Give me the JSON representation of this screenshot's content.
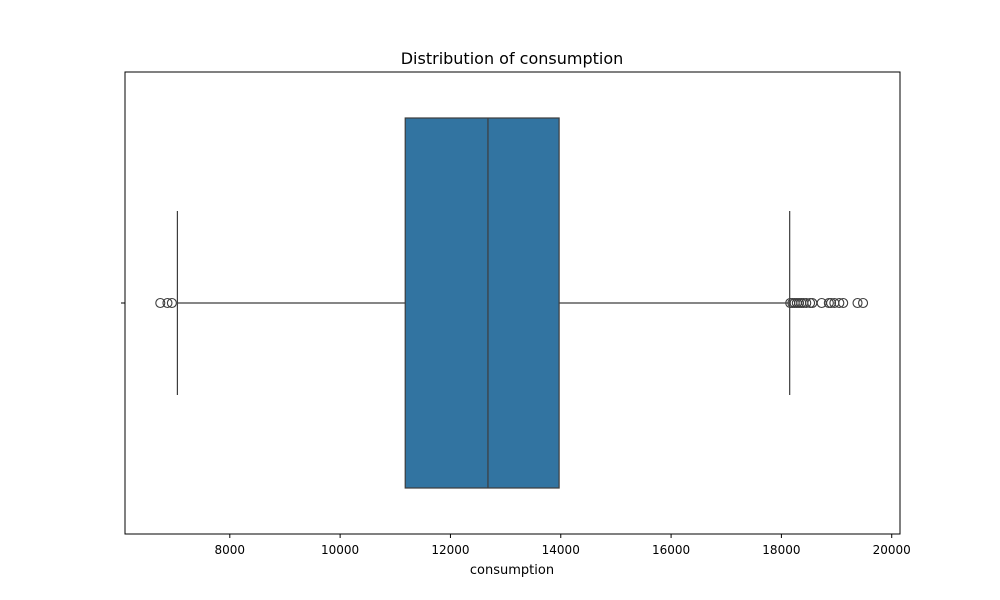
{
  "chart_data": {
    "type": "box",
    "orientation": "horizontal",
    "title": "Distribution of consumption",
    "xlabel": "consumption",
    "ylabel": "",
    "xlim": [
      6100,
      20150
    ],
    "xticks": [
      8000,
      10000,
      12000,
      14000,
      16000,
      18000,
      20000
    ],
    "grid": false,
    "box": {
      "color": "#3274a1",
      "edge_color": "#3d3d3d",
      "whisker_low": 7050,
      "q1": 11180,
      "median": 12680,
      "q3": 13970,
      "whisker_high": 18150,
      "outliers": [
        6740,
        6870,
        6950,
        18160,
        18200,
        18240,
        18280,
        18320,
        18360,
        18400,
        18450,
        18520,
        18560,
        18730,
        18860,
        18900,
        18960,
        19050,
        19120,
        19380,
        19480
      ]
    }
  }
}
